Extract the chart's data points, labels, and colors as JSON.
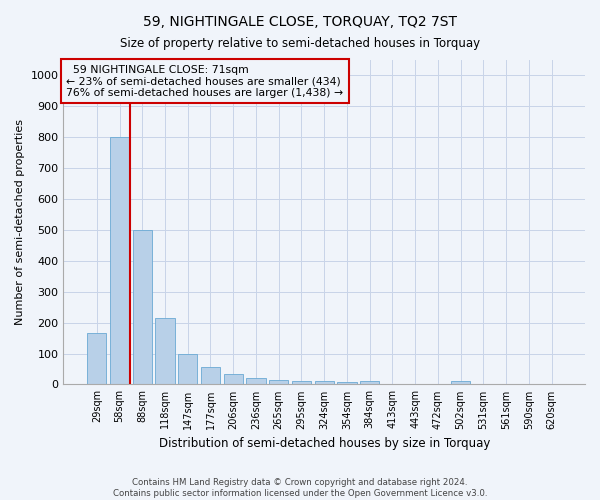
{
  "title": "59, NIGHTINGALE CLOSE, TORQUAY, TQ2 7ST",
  "subtitle": "Size of property relative to semi-detached houses in Torquay",
  "xlabel": "Distribution of semi-detached houses by size in Torquay",
  "ylabel": "Number of semi-detached properties",
  "footer1": "Contains HM Land Registry data © Crown copyright and database right 2024.",
  "footer2": "Contains public sector information licensed under the Open Government Licence v3.0.",
  "categories": [
    "29sqm",
    "58sqm",
    "88sqm",
    "118sqm",
    "147sqm",
    "177sqm",
    "206sqm",
    "236sqm",
    "265sqm",
    "295sqm",
    "324sqm",
    "354sqm",
    "384sqm",
    "413sqm",
    "443sqm",
    "472sqm",
    "502sqm",
    "531sqm",
    "561sqm",
    "590sqm",
    "620sqm"
  ],
  "values": [
    165,
    800,
    500,
    215,
    100,
    55,
    35,
    20,
    15,
    10,
    10,
    7,
    10,
    0,
    0,
    0,
    10,
    0,
    0,
    0,
    0
  ],
  "bar_color": "#b8d0e8",
  "bar_edge_color": "#6aaad4",
  "background_color": "#f0f4fa",
  "grid_color": "#c8d4e8",
  "annotation_text1": "  59 NIGHTINGALE CLOSE: 71sqm",
  "annotation_text2": "← 23% of semi-detached houses are smaller (434)",
  "annotation_text3": "76% of semi-detached houses are larger (1,438) →",
  "vline_color": "#cc0000",
  "annotation_box_color": "#f0f4fa",
  "annotation_box_edge": "#cc0000",
  "ylim": [
    0,
    1050
  ],
  "yticks": [
    0,
    100,
    200,
    300,
    400,
    500,
    600,
    700,
    800,
    900,
    1000
  ],
  "vline_x": 1.48
}
